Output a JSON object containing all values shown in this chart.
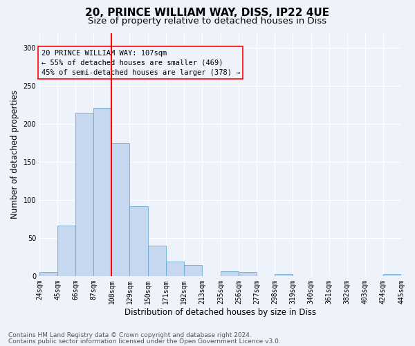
{
  "title1": "20, PRINCE WILLIAM WAY, DISS, IP22 4UE",
  "title2": "Size of property relative to detached houses in Diss",
  "xlabel": "Distribution of detached houses by size in Diss",
  "ylabel": "Number of detached properties",
  "bar_color": "#c5d8f0",
  "bar_edge_color": "#6aaad4",
  "bin_edges": [
    24,
    45,
    66,
    87,
    108,
    129,
    150,
    171,
    192,
    213,
    235,
    256,
    277,
    298,
    319,
    340,
    361,
    382,
    403,
    424,
    445
  ],
  "bin_labels": [
    "24sqm",
    "45sqm",
    "66sqm",
    "87sqm",
    "108sqm",
    "129sqm",
    "150sqm",
    "171sqm",
    "192sqm",
    "213sqm",
    "235sqm",
    "256sqm",
    "277sqm",
    "298sqm",
    "319sqm",
    "340sqm",
    "361sqm",
    "382sqm",
    "403sqm",
    "424sqm",
    "445sqm"
  ],
  "values": [
    5,
    66,
    215,
    221,
    175,
    92,
    40,
    19,
    14,
    0,
    6,
    5,
    0,
    3,
    0,
    0,
    0,
    0,
    0,
    3
  ],
  "vline_x": 108,
  "ylim": [
    0,
    320
  ],
  "yticks": [
    0,
    50,
    100,
    150,
    200,
    250,
    300
  ],
  "annotation_text": "20 PRINCE WILLIAM WAY: 107sqm\n← 55% of detached houses are smaller (469)\n45% of semi-detached houses are larger (378) →",
  "footer1": "Contains HM Land Registry data © Crown copyright and database right 2024.",
  "footer2": "Contains public sector information licensed under the Open Government Licence v3.0.",
  "background_color": "#eef2fb",
  "grid_color": "#ffffff",
  "title1_fontsize": 11,
  "title2_fontsize": 9.5,
  "axis_label_fontsize": 8.5,
  "tick_fontsize": 7,
  "annotation_fontsize": 7.5,
  "footer_fontsize": 6.5
}
